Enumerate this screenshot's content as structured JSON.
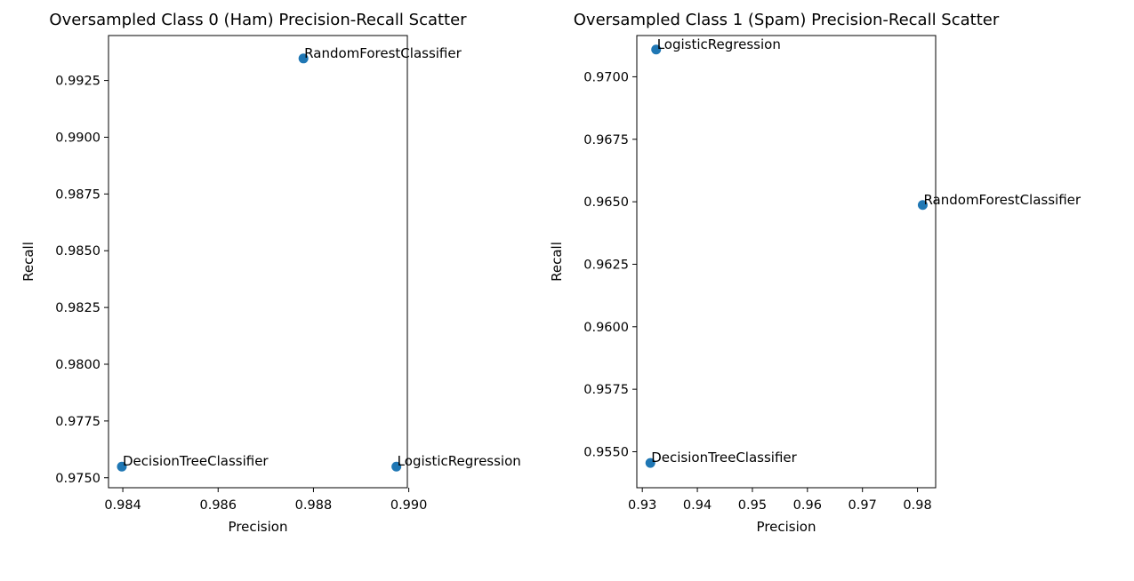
{
  "colors": {
    "marker": "#1f77b4",
    "axis": "#000000",
    "background": "#ffffff"
  },
  "chart_data": [
    {
      "type": "scatter",
      "title": "Oversampled Class 0 (Ham) Precision-Recall Scatter",
      "xlabel": "Precision",
      "ylabel": "Recall",
      "xlim": [
        0.9837,
        0.98997
      ],
      "ylim": [
        0.97456,
        0.99448
      ],
      "xticks": [
        0.984,
        0.986,
        0.988,
        0.99
      ],
      "xtick_labels": [
        "0.984",
        "0.986",
        "0.988",
        "0.990"
      ],
      "yticks": [
        0.975,
        0.9775,
        0.98,
        0.9825,
        0.985,
        0.9875,
        0.99,
        0.9925
      ],
      "ytick_labels": [
        "0.9750",
        "0.9775",
        "0.9800",
        "0.9825",
        "0.9850",
        "0.9875",
        "0.9900",
        "0.9925"
      ],
      "grid": false,
      "points": [
        {
          "label": "DecisionTreeClassifier",
          "x": 0.98398,
          "y": 0.97549
        },
        {
          "label": "RandomForestClassifier",
          "x": 0.98779,
          "y": 0.99347
        },
        {
          "label": "LogisticRegression",
          "x": 0.98974,
          "y": 0.97549
        }
      ]
    },
    {
      "type": "scatter",
      "title": "Oversampled Class 1 (Spam) Precision-Recall Scatter",
      "xlabel": "Precision",
      "ylabel": "Recall",
      "xlim": [
        0.929,
        0.9833
      ],
      "ylim": [
        0.95356,
        0.97165
      ],
      "xticks": [
        0.93,
        0.94,
        0.95,
        0.96,
        0.97,
        0.98
      ],
      "xtick_labels": [
        "0.93",
        "0.94",
        "0.95",
        "0.96",
        "0.97",
        "0.98"
      ],
      "yticks": [
        0.955,
        0.9575,
        0.96,
        0.9625,
        0.965,
        0.9675,
        0.97
      ],
      "ytick_labels": [
        "0.9550",
        "0.9575",
        "0.9600",
        "0.9625",
        "0.9650",
        "0.9675",
        "0.9700"
      ],
      "grid": false,
      "points": [
        {
          "label": "LogisticRegression",
          "x": 0.93251,
          "y": 0.97109
        },
        {
          "label": "RandomForestClassifier",
          "x": 0.98095,
          "y": 0.96487
        },
        {
          "label": "DecisionTreeClassifier",
          "x": 0.93146,
          "y": 0.95455
        }
      ]
    }
  ]
}
